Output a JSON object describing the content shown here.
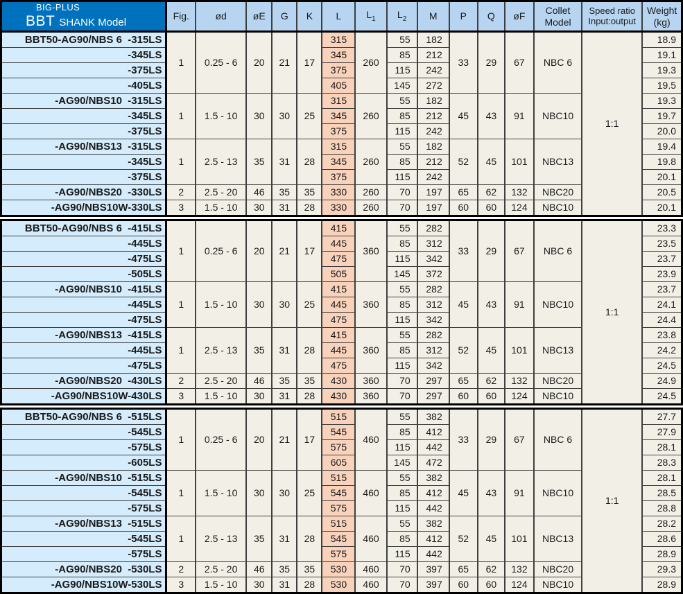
{
  "header": {
    "brand_line": "BIG-PLUS",
    "shank_big": "BBT",
    "shank_rest": "SHANK Model",
    "columns": [
      {
        "label": "Fig."
      },
      {
        "label": "ød"
      },
      {
        "label": "øE"
      },
      {
        "label": "G"
      },
      {
        "label": "K"
      },
      {
        "label": "L"
      },
      {
        "label": "L",
        "sub": "1"
      },
      {
        "label": "L",
        "sub": "2"
      },
      {
        "label": "M"
      },
      {
        "label": "P"
      },
      {
        "label": "Q"
      },
      {
        "label": "øF"
      },
      {
        "label": "Collet\nModel"
      },
      {
        "label": "Speed ratio\nInput:output"
      },
      {
        "label": "Weight\n(kg)"
      }
    ]
  },
  "colors": {
    "header_blue": "#0072bd",
    "column_header_blue": "#b7d5f1",
    "model_cell_blue": "#d4ecfb",
    "data_cell_cream": "#f2f0e6",
    "l_column_pink": "#f8d2bb"
  },
  "sections": [
    {
      "speed_ratio": "1:1",
      "groups": [
        {
          "fig": "1",
          "od": "0.25 - 6",
          "oe": "20",
          "g": "21",
          "k": "17",
          "l1": "260",
          "p": "33",
          "q": "29",
          "of": "67",
          "collet": "NBC 6",
          "rows": [
            {
              "model": "BBT50-AG90/NBS 6  -315LS",
              "l": "315",
              "l2": "55",
              "m": "182",
              "wt": "18.9"
            },
            {
              "model": "-345LS",
              "l": "345",
              "l2": "85",
              "m": "212",
              "wt": "19.1"
            },
            {
              "model": "-375LS",
              "l": "375",
              "l2": "115",
              "m": "242",
              "wt": "19.3"
            },
            {
              "model": "-405LS",
              "l": "405",
              "l2": "145",
              "m": "272",
              "wt": "19.5"
            }
          ]
        },
        {
          "fig": "1",
          "od": "1.5 - 10",
          "oe": "30",
          "g": "30",
          "k": "25",
          "l1": "260",
          "p": "45",
          "q": "43",
          "of": "91",
          "collet": "NBC10",
          "rows": [
            {
              "model": "-AG90/NBS10  -315LS",
              "l": "315",
              "l2": "55",
              "m": "182",
              "wt": "19.3"
            },
            {
              "model": "-345LS",
              "l": "345",
              "l2": "85",
              "m": "212",
              "wt": "19.7"
            },
            {
              "model": "-375LS",
              "l": "375",
              "l2": "115",
              "m": "242",
              "wt": "20.0"
            }
          ]
        },
        {
          "fig": "1",
          "od": "2.5 - 13",
          "oe": "35",
          "g": "31",
          "k": "28",
          "l1": "260",
          "p": "52",
          "q": "45",
          "of": "101",
          "collet": "NBC13",
          "rows": [
            {
              "model": "-AG90/NBS13  -315LS",
              "l": "315",
              "l2": "55",
              "m": "182",
              "wt": "19.4"
            },
            {
              "model": "-345LS",
              "l": "345",
              "l2": "85",
              "m": "212",
              "wt": "19.8"
            },
            {
              "model": "-375LS",
              "l": "375",
              "l2": "115",
              "m": "242",
              "wt": "20.1"
            }
          ]
        },
        {
          "fig": "2",
          "od": "2.5 - 20",
          "oe": "46",
          "g": "35",
          "k": "35",
          "l1": "260",
          "p": "65",
          "q": "62",
          "of": "132",
          "collet": "NBC20",
          "rows": [
            {
              "model": "-AG90/NBS20  -330LS",
              "l": "330",
              "l2": "70",
              "m": "197",
              "wt": "20.5"
            }
          ]
        },
        {
          "fig": "3",
          "od": "1.5 - 10",
          "oe": "30",
          "g": "31",
          "k": "28",
          "l1": "260",
          "p": "60",
          "q": "60",
          "of": "124",
          "collet": "NBC10",
          "rows": [
            {
              "model": "-AG90/NBS10W-330LS",
              "l": "330",
              "l2": "70",
              "m": "197",
              "wt": "20.1"
            }
          ]
        }
      ]
    },
    {
      "speed_ratio": "1:1",
      "groups": [
        {
          "fig": "1",
          "od": "0.25 - 6",
          "oe": "20",
          "g": "21",
          "k": "17",
          "l1": "360",
          "p": "33",
          "q": "29",
          "of": "67",
          "collet": "NBC 6",
          "rows": [
            {
              "model": "BBT50-AG90/NBS 6  -415LS",
              "l": "415",
              "l2": "55",
              "m": "282",
              "wt": "23.3"
            },
            {
              "model": "-445LS",
              "l": "445",
              "l2": "85",
              "m": "312",
              "wt": "23.5"
            },
            {
              "model": "-475LS",
              "l": "475",
              "l2": "115",
              "m": "342",
              "wt": "23.7"
            },
            {
              "model": "-505LS",
              "l": "505",
              "l2": "145",
              "m": "372",
              "wt": "23.9"
            }
          ]
        },
        {
          "fig": "1",
          "od": "1.5 - 10",
          "oe": "30",
          "g": "30",
          "k": "25",
          "l1": "360",
          "p": "45",
          "q": "43",
          "of": "91",
          "collet": "NBC10",
          "rows": [
            {
              "model": "-AG90/NBS10  -415LS",
              "l": "415",
              "l2": "55",
              "m": "282",
              "wt": "23.7"
            },
            {
              "model": "-445LS",
              "l": "445",
              "l2": "85",
              "m": "312",
              "wt": "24.1"
            },
            {
              "model": "-475LS",
              "l": "475",
              "l2": "115",
              "m": "342",
              "wt": "24.4"
            }
          ]
        },
        {
          "fig": "1",
          "od": "2.5 - 13",
          "oe": "35",
          "g": "31",
          "k": "28",
          "l1": "360",
          "p": "52",
          "q": "45",
          "of": "101",
          "collet": "NBC13",
          "rows": [
            {
              "model": "-AG90/NBS13  -415LS",
              "l": "415",
              "l2": "55",
              "m": "282",
              "wt": "23.8"
            },
            {
              "model": "-445LS",
              "l": "445",
              "l2": "85",
              "m": "312",
              "wt": "24.2"
            },
            {
              "model": "-475LS",
              "l": "475",
              "l2": "115",
              "m": "342",
              "wt": "24.5"
            }
          ]
        },
        {
          "fig": "2",
          "od": "2.5 - 20",
          "oe": "46",
          "g": "35",
          "k": "35",
          "l1": "360",
          "p": "65",
          "q": "62",
          "of": "132",
          "collet": "NBC20",
          "rows": [
            {
              "model": "-AG90/NBS20  -430LS",
              "l": "430",
              "l2": "70",
              "m": "297",
              "wt": "24.9"
            }
          ]
        },
        {
          "fig": "3",
          "od": "1.5 - 10",
          "oe": "30",
          "g": "31",
          "k": "28",
          "l1": "360",
          "p": "60",
          "q": "60",
          "of": "124",
          "collet": "NBC10",
          "rows": [
            {
              "model": "-AG90/NBS10W-430LS",
              "l": "430",
              "l2": "70",
              "m": "297",
              "wt": "24.5"
            }
          ]
        }
      ]
    },
    {
      "speed_ratio": "1:1",
      "groups": [
        {
          "fig": "1",
          "od": "0.25 - 6",
          "oe": "20",
          "g": "21",
          "k": "17",
          "l1": "460",
          "p": "33",
          "q": "29",
          "of": "67",
          "collet": "NBC 6",
          "rows": [
            {
              "model": "BBT50-AG90/NBS 6  -515LS",
              "l": "515",
              "l2": "55",
              "m": "382",
              "wt": "27.7"
            },
            {
              "model": "-545LS",
              "l": "545",
              "l2": "85",
              "m": "412",
              "wt": "27.9"
            },
            {
              "model": "-575LS",
              "l": "575",
              "l2": "115",
              "m": "442",
              "wt": "28.1"
            },
            {
              "model": "-605LS",
              "l": "605",
              "l2": "145",
              "m": "472",
              "wt": "28.3"
            }
          ]
        },
        {
          "fig": "1",
          "od": "1.5 - 10",
          "oe": "30",
          "g": "30",
          "k": "25",
          "l1": "460",
          "p": "45",
          "q": "43",
          "of": "91",
          "collet": "NBC10",
          "rows": [
            {
              "model": "-AG90/NBS10  -515LS",
              "l": "515",
              "l2": "55",
              "m": "382",
              "wt": "28.1"
            },
            {
              "model": "-545LS",
              "l": "545",
              "l2": "85",
              "m": "412",
              "wt": "28.5"
            },
            {
              "model": "-575LS",
              "l": "575",
              "l2": "115",
              "m": "442",
              "wt": "28.8"
            }
          ]
        },
        {
          "fig": "1",
          "od": "2.5 - 13",
          "oe": "35",
          "g": "31",
          "k": "28",
          "l1": "460",
          "p": "52",
          "q": "45",
          "of": "101",
          "collet": "NBC13",
          "rows": [
            {
              "model": "-AG90/NBS13  -515LS",
              "l": "515",
              "l2": "55",
              "m": "382",
              "wt": "28.2"
            },
            {
              "model": "-545LS",
              "l": "545",
              "l2": "85",
              "m": "412",
              "wt": "28.6"
            },
            {
              "model": "-575LS",
              "l": "575",
              "l2": "115",
              "m": "442",
              "wt": "28.9"
            }
          ]
        },
        {
          "fig": "2",
          "od": "2.5 - 20",
          "oe": "46",
          "g": "35",
          "k": "35",
          "l1": "460",
          "p": "65",
          "q": "62",
          "of": "132",
          "collet": "NBC20",
          "rows": [
            {
              "model": "-AG90/NBS20  -530LS",
              "l": "530",
              "l2": "70",
              "m": "397",
              "wt": "29.3"
            }
          ]
        },
        {
          "fig": "3",
          "od": "1.5 - 10",
          "oe": "30",
          "g": "31",
          "k": "28",
          "l1": "460",
          "p": "60",
          "q": "60",
          "of": "124",
          "collet": "NBC10",
          "rows": [
            {
              "model": "-AG90/NBS10W-530LS",
              "l": "530",
              "l2": "70",
              "m": "397",
              "wt": "28.9"
            }
          ]
        }
      ]
    }
  ]
}
